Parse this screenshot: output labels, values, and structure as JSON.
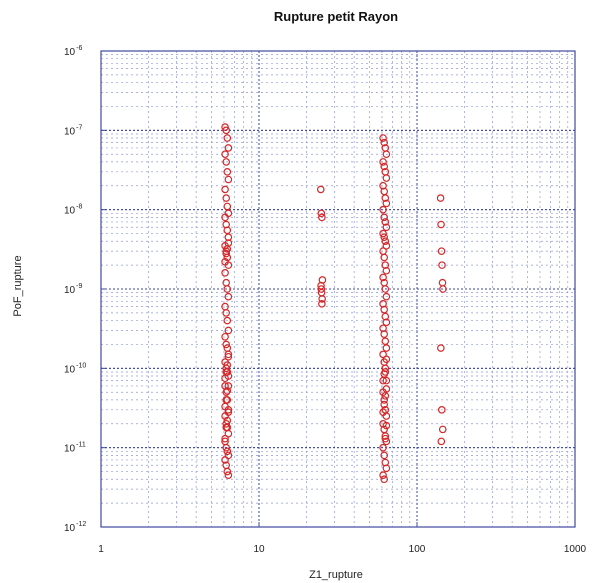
{
  "chart_data": {
    "type": "scatter",
    "title": "Rupture petit Rayon",
    "xlabel": "Z1_rupture",
    "ylabel": "PoF_rupture",
    "xscale": "log",
    "yscale": "log",
    "xlim": [
      1,
      1000
    ],
    "ylim": [
      1e-12,
      1e-06
    ],
    "grid": true,
    "marker": "open-circle",
    "colors": {
      "marker": "#d62728",
      "axes": "#3f4aa0",
      "major_grid": "#3c4aa5",
      "minor_grid": "#8f99d6"
    },
    "xticks": [
      {
        "value": 1,
        "label": "1"
      },
      {
        "value": 10,
        "label": "10"
      },
      {
        "value": 100,
        "label": "100"
      },
      {
        "value": 1000,
        "label": "1000"
      }
    ],
    "yticks": [
      {
        "value": 1e-12,
        "base": "10",
        "exp": "-12"
      },
      {
        "value": 1e-11,
        "base": "10",
        "exp": "-11"
      },
      {
        "value": 1e-10,
        "base": "10",
        "exp": "-10"
      },
      {
        "value": 1e-09,
        "base": "10",
        "exp": "-9"
      },
      {
        "value": 1e-08,
        "base": "10",
        "exp": "-8"
      },
      {
        "value": 1e-07,
        "base": "10",
        "exp": "-7"
      },
      {
        "value": 1e-06,
        "base": "10",
        "exp": "-6"
      }
    ],
    "series": [
      {
        "x": [
          6.1,
          6.2,
          6.3,
          6.4,
          6.1,
          6.2,
          6.3,
          6.4,
          6.1,
          6.2,
          6.3,
          6.4,
          6.1,
          6.2,
          6.3,
          6.4,
          6.1,
          6.2,
          6.3,
          6.4,
          6.1,
          6.2,
          6.3,
          6.4,
          6.1,
          6.2,
          6.3,
          6.4,
          6.1,
          6.2,
          6.3,
          6.4,
          6.1,
          6.2,
          6.3,
          6.4,
          6.1,
          6.2,
          6.3,
          6.4,
          6.1,
          6.2,
          6.3,
          6.4,
          6.1,
          6.2,
          6.3,
          6.4,
          6.1,
          6.2,
          6.3,
          6.4,
          6.1,
          6.2,
          6.3,
          6.4,
          6.1,
          6.2,
          6.3,
          6.4,
          6.1,
          6.2,
          6.3,
          6.4,
          6.1,
          6.2,
          6.3,
          6.4,
          24.6,
          24.8,
          25.0,
          25.2,
          24.7,
          24.9,
          25.1,
          25.0,
          24.8,
          61.0,
          62.0,
          63.0,
          64.0,
          61.0,
          62.0,
          63.0,
          64.0,
          61.0,
          62.0,
          63.0,
          64.0,
          61.0,
          62.0,
          63.0,
          64.0,
          61.0,
          62.0,
          63.0,
          64.0,
          61.0,
          62.0,
          63.0,
          64.0,
          61.0,
          62.0,
          63.0,
          64.0,
          61.0,
          62.0,
          63.0,
          64.0,
          61.0,
          62.0,
          63.0,
          64.0,
          61.0,
          62.0,
          63.0,
          64.0,
          61.0,
          62.0,
          63.0,
          64.0,
          61.0,
          62.0,
          63.0,
          64.0,
          61.0,
          62.0,
          63.0,
          64.0,
          61.0,
          62.0,
          63.0,
          64.0,
          61.0,
          62.0,
          63.0,
          64.0,
          61.0,
          62.0,
          63.0,
          64.0,
          141.0,
          142.0,
          143.0,
          144.0,
          145.0,
          146.0,
          141.5,
          143.5,
          145.5,
          142.5
        ],
        "y": [
          1.1e-07,
          1e-07,
          8e-08,
          6e-08,
          5e-08,
          4e-08,
          3e-08,
          2.4e-08,
          1.8e-08,
          1.4e-08,
          1.1e-08,
          9e-09,
          8e-09,
          6.5e-09,
          5.5e-09,
          4.5e-09,
          3.5e-09,
          3e-09,
          2.5e-09,
          2e-09,
          1.6e-09,
          1.2e-09,
          1e-09,
          8e-10,
          6e-10,
          5e-10,
          4e-10,
          3e-10,
          2.5e-10,
          2e-10,
          1.8e-10,
          1.5e-10,
          1.2e-10,
          1e-10,
          9e-11,
          8e-11,
          6e-11,
          5e-11,
          4e-11,
          3e-11,
          2.5e-11,
          2e-11,
          1.8e-11,
          1.5e-11,
          1.2e-11,
          1e-11,
          9e-12,
          8e-12,
          7e-12,
          6e-12,
          5e-12,
          4.5e-12,
          1.3e-11,
          1.8e-11,
          2.2e-11,
          2.8e-11,
          3.3e-11,
          4e-11,
          5.2e-11,
          6e-11,
          7.5e-11,
          9e-11,
          1.1e-10,
          1.4e-10,
          2.2e-09,
          2.8e-09,
          3.2e-09,
          3.8e-09,
          1.8e-08,
          9e-09,
          8e-09,
          1.3e-09,
          1.1e-09,
          9e-10,
          7.5e-10,
          6.5e-10,
          1e-09,
          8e-08,
          7e-08,
          6e-08,
          5e-08,
          4e-08,
          3.5e-08,
          3e-08,
          2.5e-08,
          2e-08,
          1.7e-08,
          1.4e-08,
          1.2e-08,
          1e-08,
          8e-09,
          7e-09,
          6e-09,
          5e-09,
          4.5e-09,
          4e-09,
          3.5e-09,
          3e-09,
          2.5e-09,
          2e-09,
          1.7e-09,
          1.4e-09,
          1.2e-09,
          1e-09,
          8e-10,
          6.5e-10,
          5.5e-10,
          4.5e-10,
          3.8e-10,
          3.2e-10,
          2.7e-10,
          2.2e-10,
          1.8e-10,
          1.5e-10,
          1.2e-10,
          9e-11,
          7e-11,
          5e-11,
          4e-11,
          3e-11,
          2.5e-11,
          2e-11,
          1.7e-11,
          1.4e-11,
          1.2e-11,
          1e-11,
          8e-12,
          6.5e-12,
          5.5e-12,
          4.5e-12,
          4e-12,
          1.3e-11,
          1.9e-11,
          2.8e-11,
          3.5e-11,
          4.5e-11,
          5.5e-11,
          7e-11,
          8.5e-11,
          1e-10,
          1.3e-10,
          1.4e-08,
          6.5e-09,
          3e-09,
          2e-09,
          1.2e-09,
          1e-09,
          1.8e-10,
          3e-11,
          1.7e-11,
          1.2e-11
        ]
      }
    ]
  }
}
